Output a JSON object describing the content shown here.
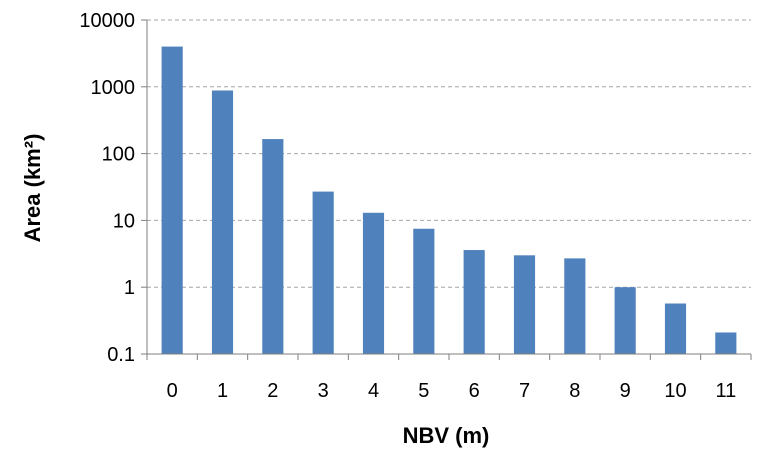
{
  "chart_data": {
    "type": "bar",
    "scale": "log",
    "categories": [
      "0",
      "1",
      "2",
      "3",
      "4",
      "5",
      "6",
      "7",
      "8",
      "9",
      "10",
      "11"
    ],
    "values": [
      4000,
      880,
      165,
      27,
      13,
      7.5,
      3.6,
      3.0,
      2.7,
      1.0,
      0.57,
      0.21
    ],
    "y_ticks": [
      0.1,
      1,
      10,
      100,
      1000,
      10000
    ],
    "y_tick_labels": [
      "0.1",
      "1",
      "10",
      "100",
      "1000",
      "10000"
    ],
    "ylim": [
      0.1,
      10000
    ],
    "title": "",
    "xlabel": "NBV (m)",
    "ylabel": "Area (km²)",
    "grid": true,
    "bar_color": "#4f81bd",
    "grid_color": "#a6a6a6",
    "axis_color": "#7f7f7f"
  }
}
